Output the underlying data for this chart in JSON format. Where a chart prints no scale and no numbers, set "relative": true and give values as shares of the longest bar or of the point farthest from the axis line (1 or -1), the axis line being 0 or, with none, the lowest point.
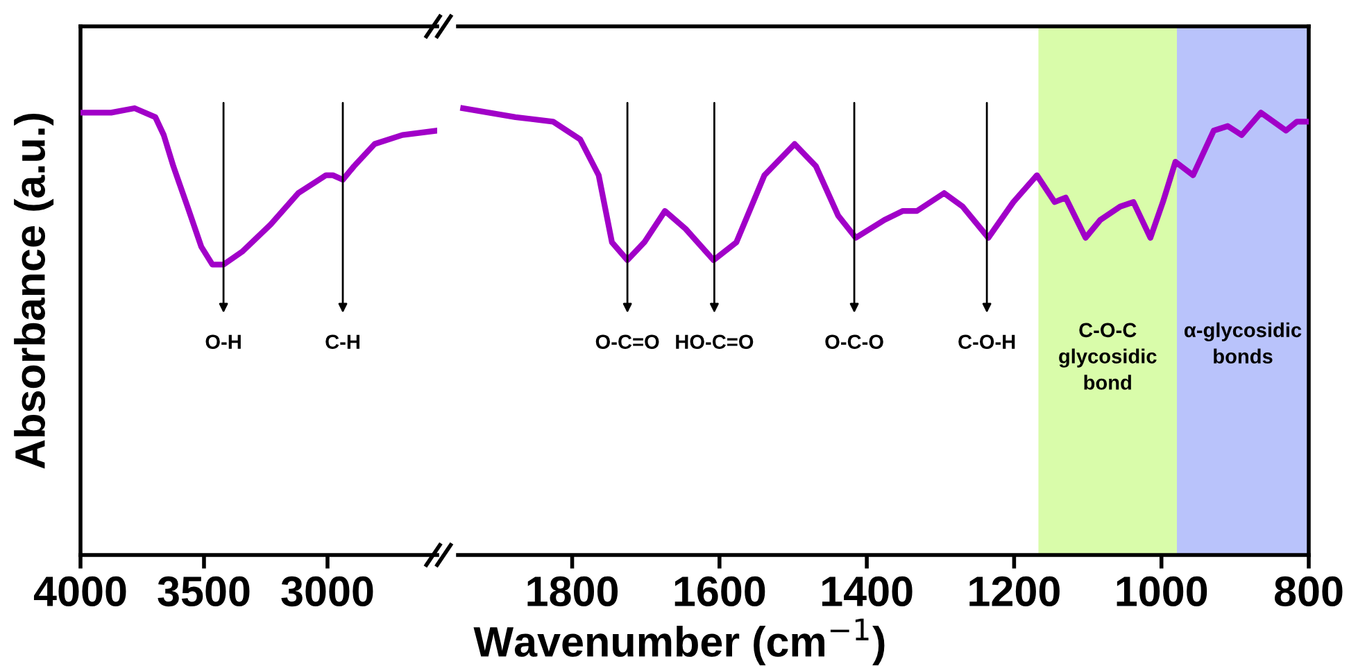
{
  "chart_data": [
    {
      "type": "line",
      "relative": true,
      "ylabel": "Absorbance (a.u.)",
      "xlim": [
        4000,
        2556
      ],
      "xticks": [
        4000,
        3500,
        3000
      ],
      "tick_labels": "x",
      "series": [
        {
          "color": "#a100c8",
          "x": [
            4000,
            3876,
            3781,
            3697,
            3663,
            3624,
            3567,
            3511,
            3466,
            3421,
            3343,
            3230,
            3118,
            3006,
            2978,
            2938,
            2893,
            2809,
            2697,
            2556
          ],
          "values": [
            0.99,
            0.99,
            1.0,
            0.98,
            0.94,
            0.87,
            0.78,
            0.69,
            0.65,
            0.65,
            0.68,
            0.74,
            0.81,
            0.85,
            0.85,
            0.84,
            0.87,
            0.92,
            0.94,
            0.95
          ]
        }
      ],
      "annotations": [
        {
          "text": "O-H",
          "x": 3421,
          "y": 0.65
        },
        {
          "text": "C-H",
          "x": 2938,
          "y": 0.84
        }
      ]
    },
    {
      "type": "line",
      "relative": true,
      "xlabel": "Wavenumber (cm$^{−1}$)",
      "xlim": [
        1955,
        800
      ],
      "xticks": [
        1800,
        1600,
        1400,
        1200,
        1000,
        800
      ],
      "tick_labels": "x",
      "series": [
        {
          "color": "#a100c8",
          "x": [
            1948,
            1877,
            1826,
            1789,
            1764,
            1746,
            1725,
            1702,
            1674,
            1646,
            1608,
            1577,
            1539,
            1498,
            1469,
            1439,
            1415,
            1376,
            1351,
            1332,
            1295,
            1270,
            1235,
            1201,
            1169,
            1145,
            1130,
            1103,
            1083,
            1056,
            1038,
            1015,
            998,
            981,
            957,
            929,
            910,
            891,
            865,
            831,
            816,
            800
          ],
          "values": [
            1.0,
            0.98,
            0.97,
            0.93,
            0.85,
            0.7,
            0.66,
            0.7,
            0.77,
            0.73,
            0.66,
            0.7,
            0.85,
            0.92,
            0.87,
            0.76,
            0.71,
            0.75,
            0.77,
            0.77,
            0.81,
            0.78,
            0.71,
            0.79,
            0.85,
            0.79,
            0.8,
            0.71,
            0.75,
            0.78,
            0.79,
            0.71,
            0.79,
            0.88,
            0.85,
            0.95,
            0.96,
            0.94,
            0.99,
            0.95,
            0.97,
            0.97
          ]
        }
      ],
      "bands": [
        {
          "axis": "x",
          "from": 1167,
          "to": 979,
          "label": "C-O-C\nglycosidic\nbond",
          "color": "#d9fcaa"
        },
        {
          "axis": "x",
          "from": 979,
          "to": 800,
          "label": "α-glycosidic\nbonds",
          "color": "#b9c3fb"
        }
      ],
      "annotations": [
        {
          "text": "O-C=O",
          "x": 1725,
          "y": 0.66
        },
        {
          "text": "HO-C=O",
          "x": 1607,
          "y": 0.66
        },
        {
          "text": "O-C-O",
          "x": 1417,
          "y": 0.71
        },
        {
          "text": "C-O-H",
          "x": 1237,
          "y": 0.71
        }
      ]
    }
  ]
}
